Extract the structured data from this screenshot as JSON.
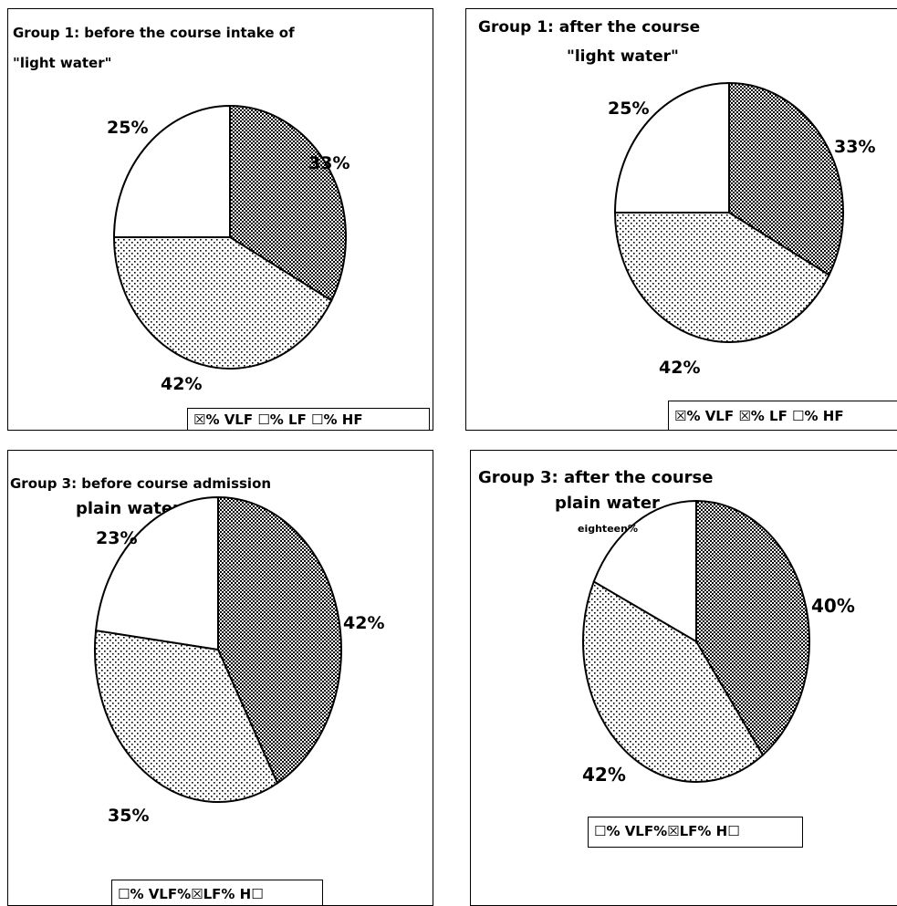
{
  "chart_data": [
    {
      "type": "pie",
      "title_line1": "Group 1: before the course intake of",
      "title_line2": "\"light water\"",
      "categories": [
        "% VLF",
        "% LF",
        "% HF"
      ],
      "values": [
        33,
        42,
        25
      ],
      "labels": [
        "33%",
        "42%",
        "25%"
      ],
      "legend": "☒% VLF  ☐% LF  ☐% HF",
      "legend_placement": "bottom-right"
    },
    {
      "type": "pie",
      "title_line1": "Group 1: after the course",
      "title_line2": "\"light water\"",
      "categories": [
        "% VLF",
        "% LF",
        "% HF"
      ],
      "values": [
        33,
        42,
        25
      ],
      "labels": [
        "33%",
        "42%",
        "25%"
      ],
      "legend": "☒% VLF  ☒% LF  ☐% HF",
      "legend_placement": "bottom-right"
    },
    {
      "type": "pie",
      "title_line1": "Group 3: before course admission",
      "title_line2": "plain water",
      "categories": [
        "% VLF",
        "% LF",
        "% HF"
      ],
      "values": [
        42,
        35,
        23
      ],
      "labels": [
        "42%",
        "35%",
        "23%"
      ],
      "legend": "☐% VLF%☒LF% H☐",
      "legend_placement": "bottom-center"
    },
    {
      "type": "pie",
      "title_line1": "Group 3: after the course",
      "title_line2": "plain water",
      "categories": [
        "% VLF",
        "% LF",
        "% HF"
      ],
      "values": [
        40,
        42,
        18
      ],
      "labels": [
        "40%",
        "42%",
        "eighteen%"
      ],
      "legend": "☐% VLF%☒LF% H☐",
      "legend_placement": "bottom-center"
    }
  ]
}
